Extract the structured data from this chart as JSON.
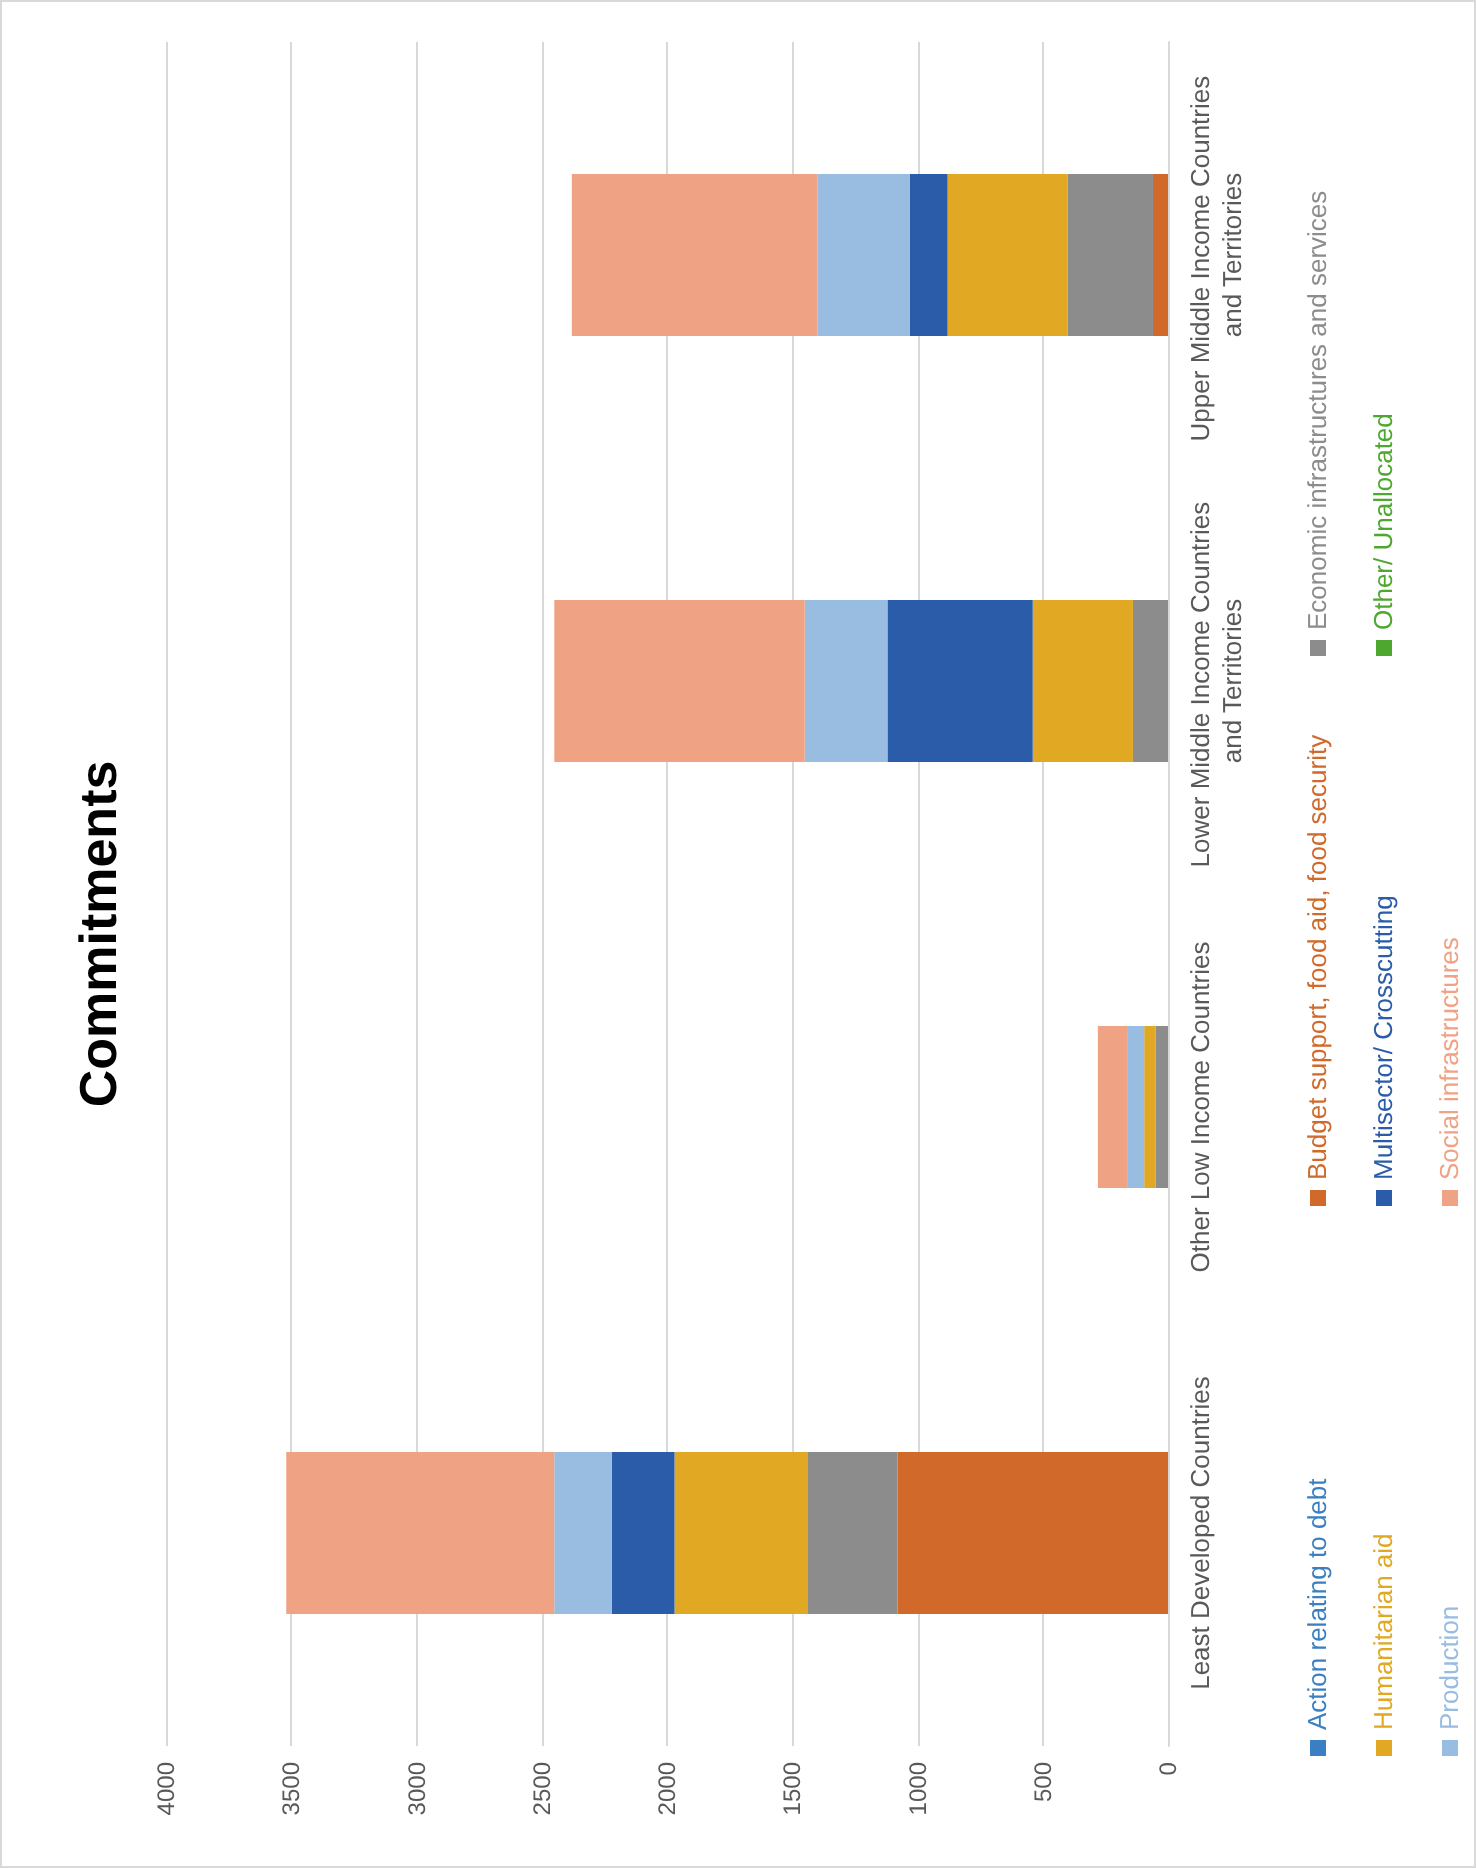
{
  "chart_data": {
    "type": "bar",
    "title": "Commitments",
    "stacked": true,
    "orientation": "horizontal",
    "categories": [
      "Upper Middle Income Countries and Territories",
      "Lower Middle Income Countries and Territories",
      "Other Low Income Countries",
      "Least Developed Countries"
    ],
    "series": [
      {
        "name": "Action relating to debt",
        "color": "#3a7fc1",
        "values": [
          null,
          null,
          null,
          null
        ]
      },
      {
        "name": "Budget support, food aid, food security",
        "color": "#d0692a",
        "values": [
          60,
          null,
          null,
          1080
        ]
      },
      {
        "name": "Economic infrastructures and services",
        "color": "#8c8c8c",
        "values": [
          340,
          140,
          50,
          360
        ]
      },
      {
        "name": "Humanitarian aid",
        "color": "#e0a823",
        "values": [
          480,
          400,
          45,
          530
        ]
      },
      {
        "name": "Multisector/ Crosscutting",
        "color": "#2a5caa",
        "values": [
          150,
          580,
          null,
          250
        ]
      },
      {
        "name": "Other/ Unallocated",
        "color": "#4ea72e",
        "values": [
          null,
          null,
          null,
          null
        ]
      },
      {
        "name": "Production",
        "color": "#98bde0",
        "values": [
          370,
          330,
          65,
          230
        ]
      },
      {
        "name": "Social infrastructures",
        "color": "#f0a384",
        "values": [
          980,
          1000,
          120,
          1070
        ]
      }
    ],
    "xlim": [
      4000,
      0
    ],
    "xticks": [
      4000,
      3500,
      3000,
      2500,
      2000,
      1500,
      1000,
      500,
      0
    ],
    "grid": "x",
    "legend": "right"
  }
}
